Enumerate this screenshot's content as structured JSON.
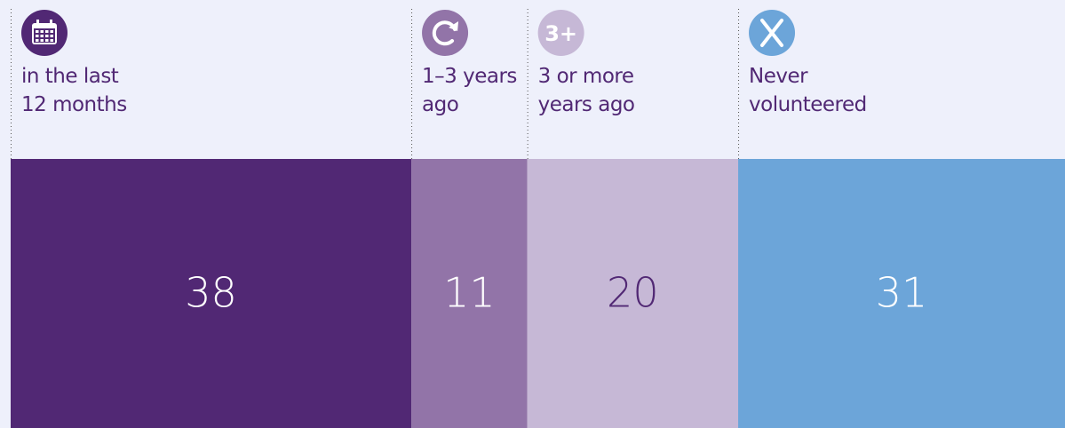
{
  "chart_data": {
    "type": "stacked_bar",
    "xlim": [
      0,
      100
    ],
    "series": [
      {
        "name": "in the last 12 months",
        "color": "#512874",
        "label_color": "#ffffff",
        "values": [
          38
        ]
      },
      {
        "name": "1–3 years ago",
        "color": "#9274a8",
        "label_color": "#ffffff",
        "values": [
          11
        ]
      },
      {
        "name": "3 or more years ago",
        "color": "#c6b8d6",
        "label_color": "#512874",
        "icon": "3+",
        "values": [
          20
        ]
      },
      {
        "name": "Never volunteered",
        "color": "#6ca5d9",
        "label_color": "#ffffff",
        "values": [
          31
        ]
      }
    ]
  }
}
